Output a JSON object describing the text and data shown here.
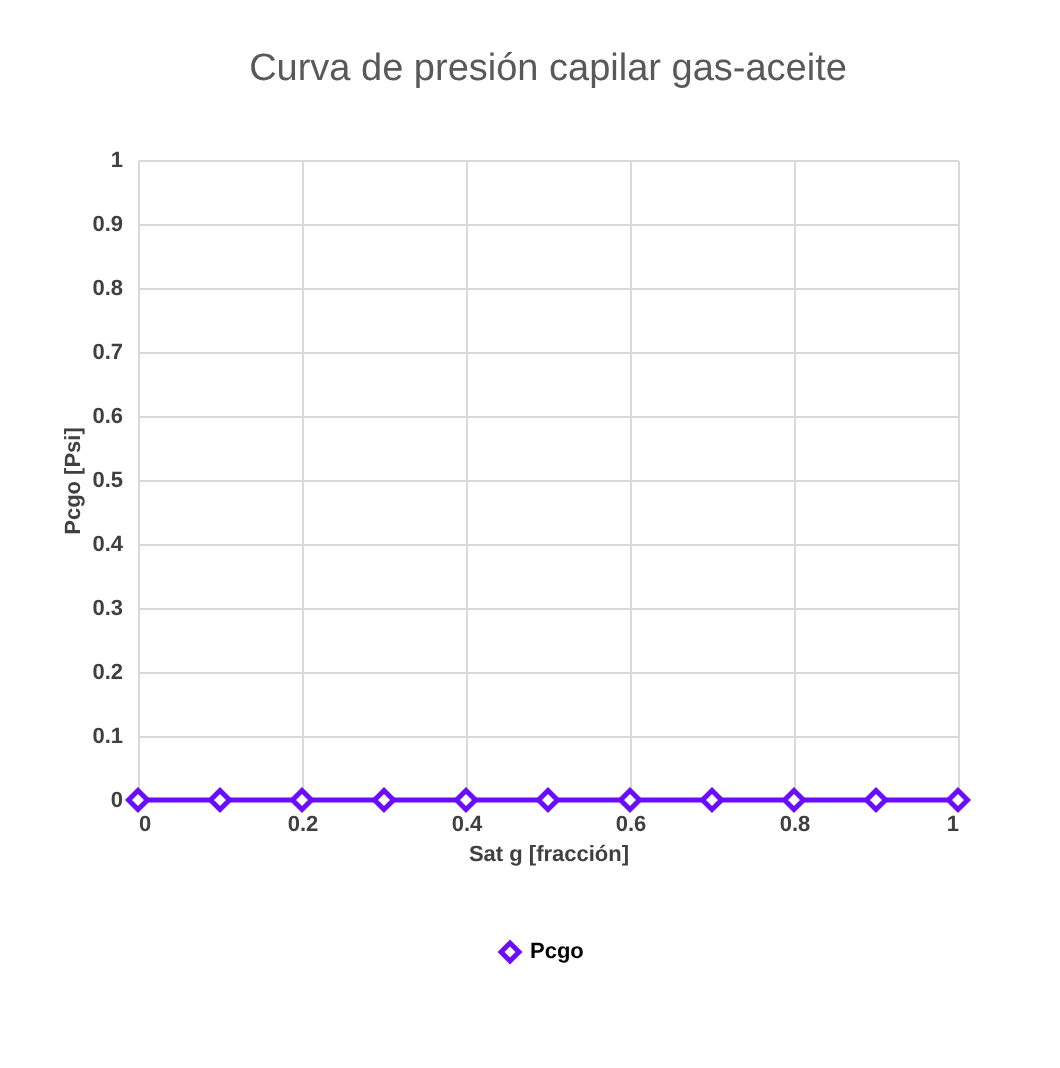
{
  "chart_data": {
    "type": "line",
    "title": "Curva de presión capilar gas-aceite",
    "xlabel": "Sat g [fracción]",
    "ylabel": "Pcgo [Psi]",
    "x": [
      0,
      0.1,
      0.2,
      0.3,
      0.4,
      0.5,
      0.6,
      0.7,
      0.8,
      0.9,
      1
    ],
    "series": [
      {
        "name": "Pcgo",
        "color": "#6a0dff",
        "values": [
          0,
          0,
          0,
          0,
          0,
          0,
          0,
          0,
          0,
          0,
          0
        ]
      }
    ],
    "xlim": [
      0,
      1
    ],
    "xticks": [
      0,
      0.2,
      0.4,
      0.6,
      0.8,
      1
    ],
    "ylim": [
      0,
      1
    ],
    "yticks": [
      0,
      0.1,
      0.2,
      0.3,
      0.4,
      0.5,
      0.6,
      0.7,
      0.8,
      0.9,
      1
    ],
    "grid": true,
    "legend": "bottom",
    "marker": "diamond",
    "line_style": "solid"
  }
}
